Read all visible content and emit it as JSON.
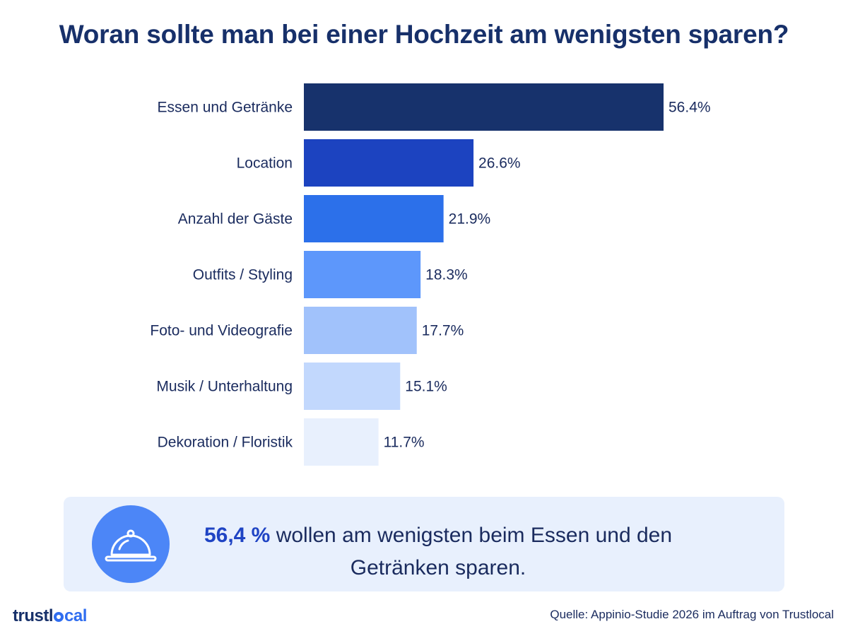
{
  "header": {
    "title": "Woran sollte man bei einer Hochzeit am wenigsten sparen?"
  },
  "chart_data": {
    "type": "bar",
    "orientation": "horizontal",
    "categories": [
      "Essen und Getränke",
      "Location",
      "Anzahl der Gäste",
      "Outfits / Styling",
      "Foto- und Videografie",
      "Musik / Unterhaltung",
      "Dekoration / Floristik"
    ],
    "values": [
      56.4,
      26.6,
      21.9,
      18.3,
      17.7,
      15.1,
      11.7
    ],
    "value_labels": [
      "56.4%",
      "26.6%",
      "21.9%",
      "18.3%",
      "17.7%",
      "15.1%",
      "11.7%"
    ],
    "colors": [
      "#17326c",
      "#1c43c0",
      "#2c70ea",
      "#5d97fb",
      "#a1c2fb",
      "#c2d8fd",
      "#e8f0fd"
    ],
    "xlim": [
      0,
      56.4
    ],
    "grid": false,
    "legend": "none"
  },
  "callout": {
    "icon": "food-cloche-icon",
    "highlight": "56,4 %",
    "text": " wollen am wenigsten beim Essen und den Getränken sparen."
  },
  "footer": {
    "logo_pre": "trustl",
    "logo_post": "cal",
    "source": "Quelle: Appinio-Studie 2026 im Auftrag von Trustlocal"
  }
}
